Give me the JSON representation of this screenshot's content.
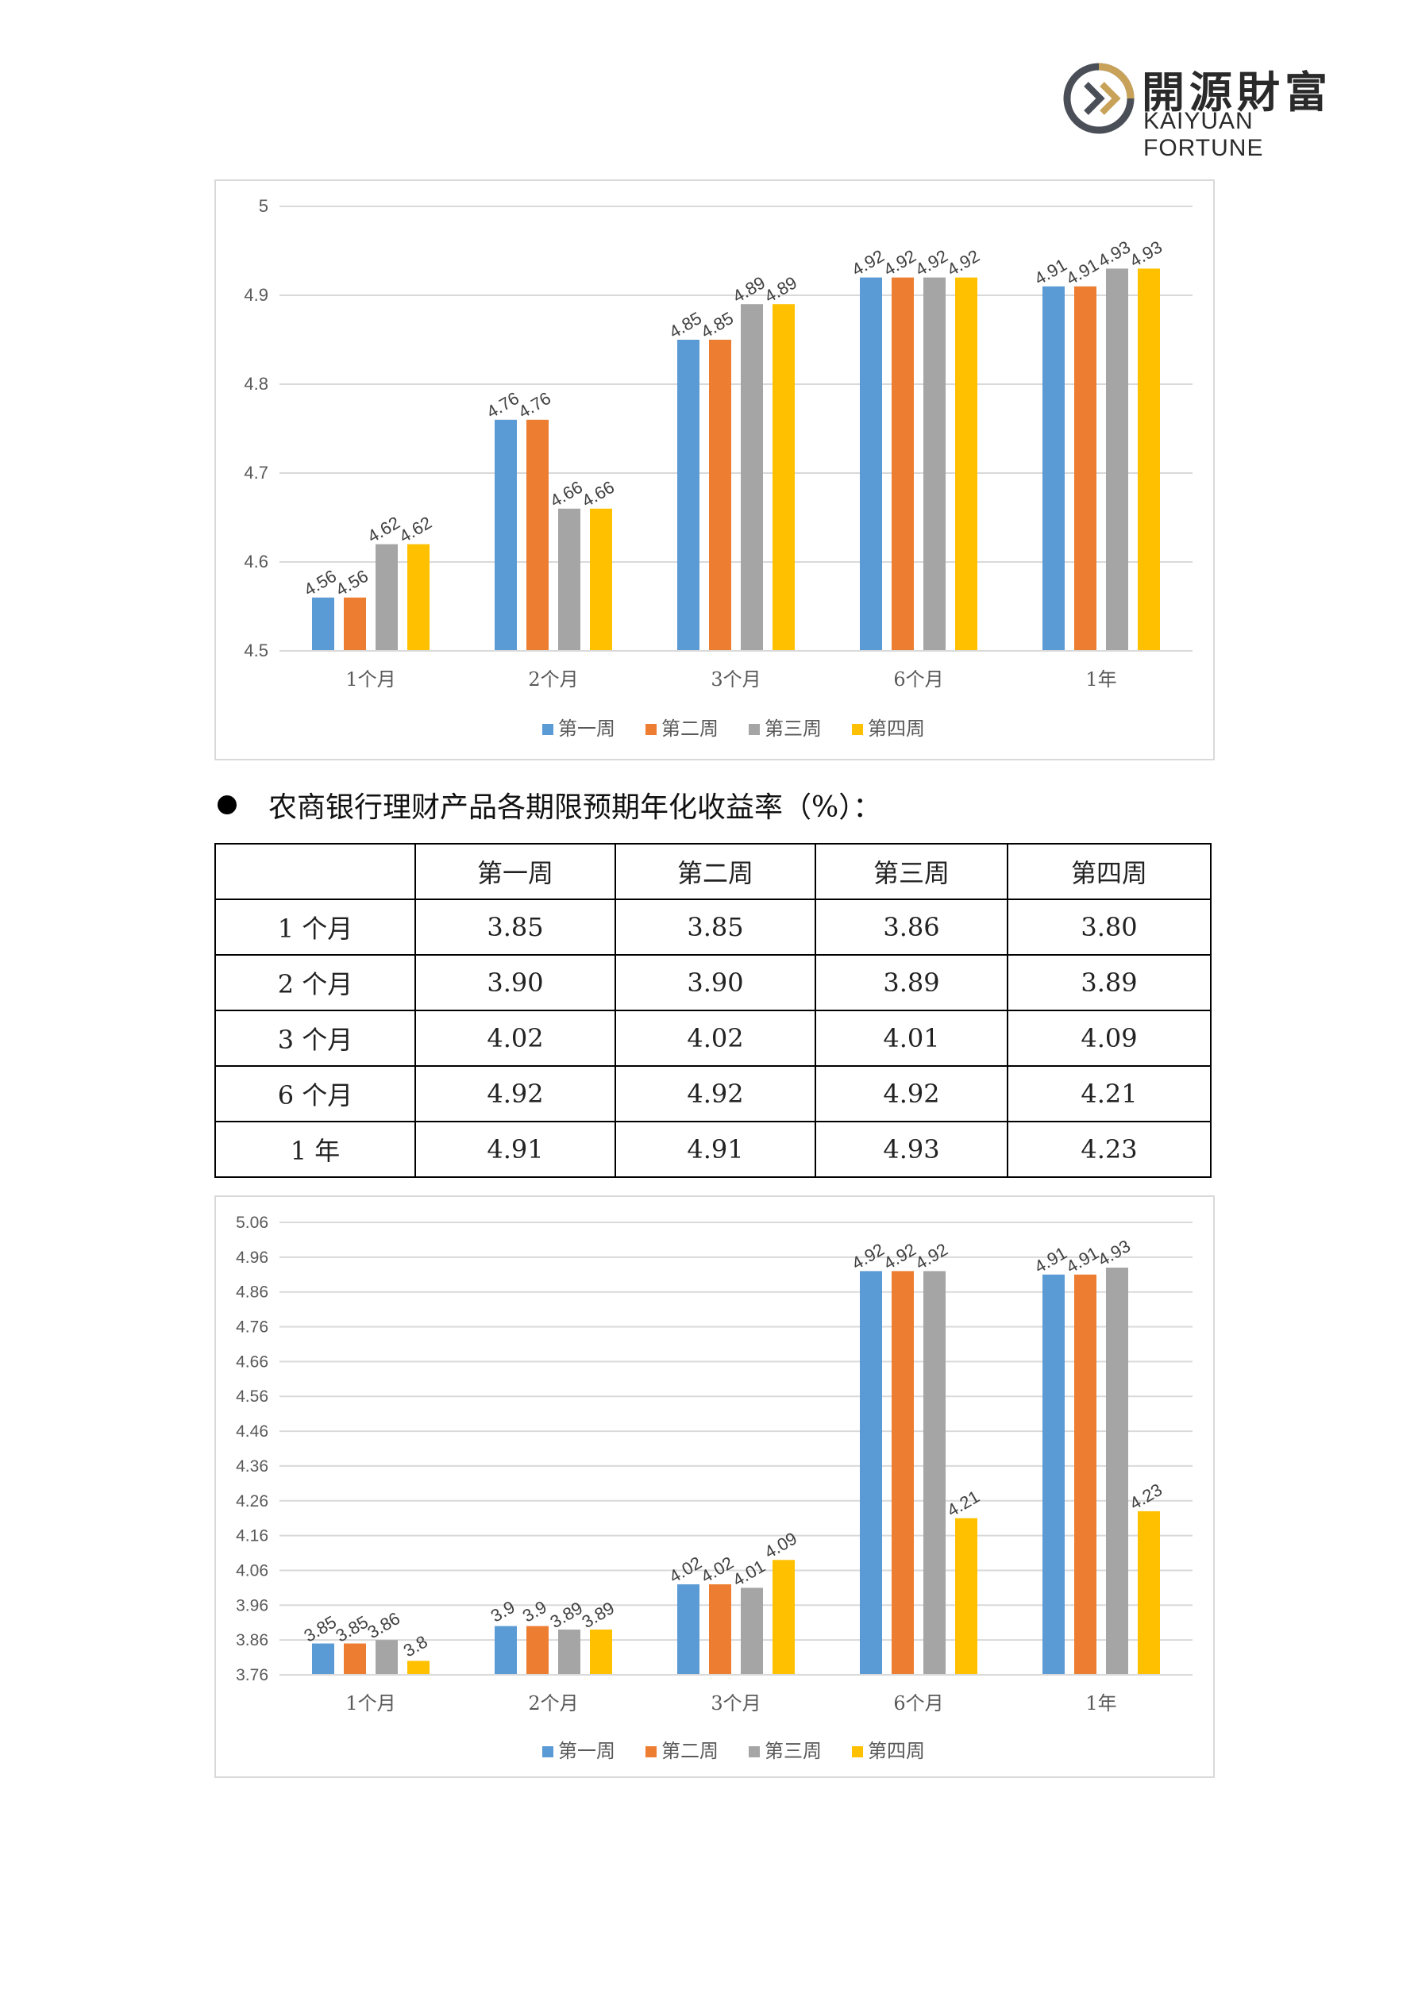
{
  "brand": {
    "name_cn": "開源財富",
    "name_en": "KAIYUAN FORTUNE"
  },
  "heading": "农商银行理财产品各期限预期年化收益率（%）：",
  "table": {
    "headers": [
      "",
      "第一周",
      "第二周",
      "第三周",
      "第四周"
    ],
    "rows": [
      {
        "label": "1 个月",
        "values": [
          "3.85",
          "3.85",
          "3.86",
          "3.80"
        ]
      },
      {
        "label": "2 个月",
        "values": [
          "3.90",
          "3.90",
          "3.89",
          "3.89"
        ]
      },
      {
        "label": "3 个月",
        "values": [
          "4.02",
          "4.02",
          "4.01",
          "4.09"
        ]
      },
      {
        "label": "6 个月",
        "values": [
          "4.92",
          "4.92",
          "4.92",
          "4.21"
        ]
      },
      {
        "label": "1 年",
        "values": [
          "4.91",
          "4.91",
          "4.93",
          "4.23"
        ]
      }
    ]
  },
  "colors": {
    "week1": "#5B9BD5",
    "week2": "#ED7D31",
    "week3": "#A5A5A5",
    "week4": "#FFC000"
  },
  "chart_data": [
    {
      "type": "bar",
      "categories": [
        "1个月",
        "2个月",
        "3个月",
        "6个月",
        "1年"
      ],
      "series": [
        {
          "name": "第一周",
          "values": [
            4.56,
            4.76,
            4.85,
            4.92,
            4.91
          ]
        },
        {
          "name": "第二周",
          "values": [
            4.56,
            4.76,
            4.85,
            4.92,
            4.91
          ]
        },
        {
          "name": "第三周",
          "values": [
            4.62,
            4.66,
            4.89,
            4.92,
            4.93
          ]
        },
        {
          "name": "第四周",
          "values": [
            4.62,
            4.66,
            4.89,
            4.92,
            4.93
          ]
        }
      ],
      "ylim": [
        4.5,
        5
      ],
      "yticks": [
        "4.5",
        "4.6",
        "4.7",
        "4.8",
        "4.9",
        "5"
      ],
      "grid": true,
      "legend": "bottom"
    },
    {
      "type": "bar",
      "categories": [
        "1个月",
        "2个月",
        "3个月",
        "6个月",
        "1年"
      ],
      "series": [
        {
          "name": "第一周",
          "values": [
            3.85,
            3.9,
            4.02,
            4.92,
            4.91
          ]
        },
        {
          "name": "第二周",
          "values": [
            3.85,
            3.9,
            4.02,
            4.92,
            4.91
          ]
        },
        {
          "name": "第三周",
          "values": [
            3.86,
            3.89,
            4.01,
            4.92,
            4.93
          ]
        },
        {
          "name": "第四周",
          "values": [
            3.8,
            3.89,
            4.09,
            4.21,
            4.23
          ]
        }
      ],
      "ylim": [
        3.76,
        5.06
      ],
      "yticks": [
        "3.76",
        "3.86",
        "3.96",
        "4.06",
        "4.16",
        "4.26",
        "4.36",
        "4.46",
        "4.56",
        "4.66",
        "4.76",
        "4.86",
        "4.96",
        "5.06"
      ],
      "grid": true,
      "legend": "bottom"
    }
  ]
}
